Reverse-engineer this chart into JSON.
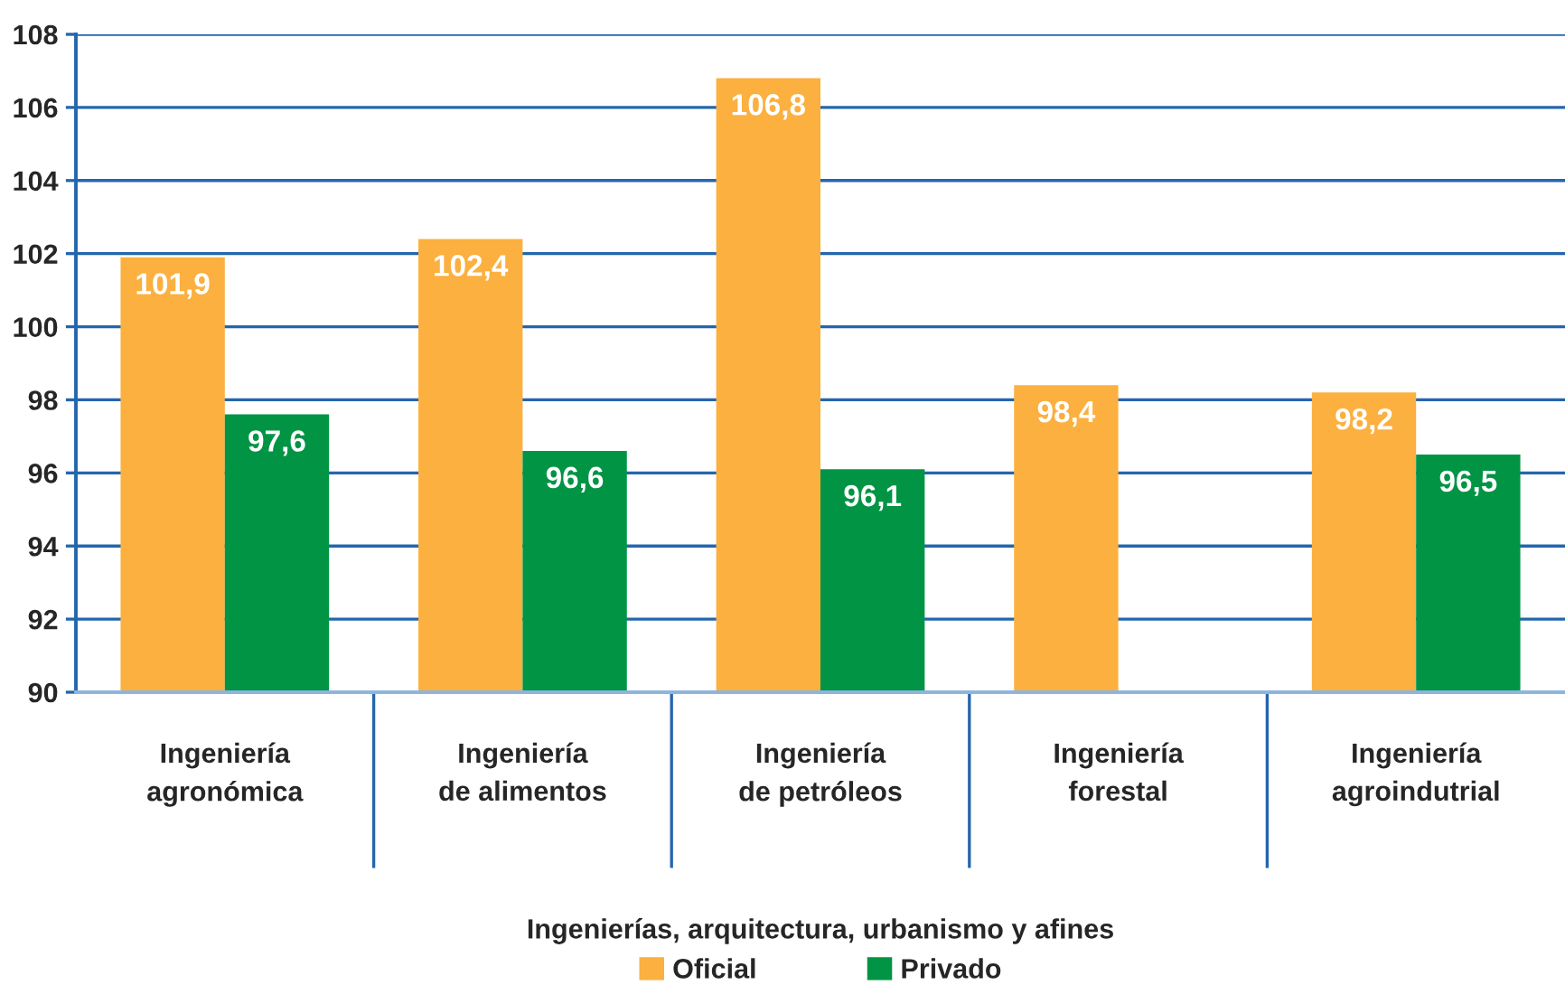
{
  "chart_data": {
    "type": "bar",
    "categories": [
      "Ingeniería\nagronómica",
      "Ingeniería\nde alimentos",
      "Ingeniería\nde petróleos",
      "Ingeniería\nforestal",
      "Ingeniería\nagroindutrial"
    ],
    "xlabel": "Ingenierías, arquitectura, urbanismo y afines",
    "series": [
      {
        "name": "Oficial",
        "color": "#fbb040",
        "values": [
          101.9,
          102.4,
          106.8,
          98.4,
          98.2
        ],
        "value_labels": [
          "101,9",
          "102,4",
          "106,8",
          "98,4",
          "98,2"
        ]
      },
      {
        "name": "Privado",
        "color": "#009444",
        "values": [
          97.6,
          96.6,
          96.1,
          null,
          96.5
        ],
        "value_labels": [
          "97,6",
          "96,6",
          "96,1",
          null,
          "96,5"
        ]
      }
    ],
    "ylim": [
      90,
      108
    ],
    "yticks": [
      90,
      92,
      94,
      96,
      98,
      100,
      102,
      104,
      106,
      108
    ],
    "grid": "y",
    "legend": "bottom"
  }
}
